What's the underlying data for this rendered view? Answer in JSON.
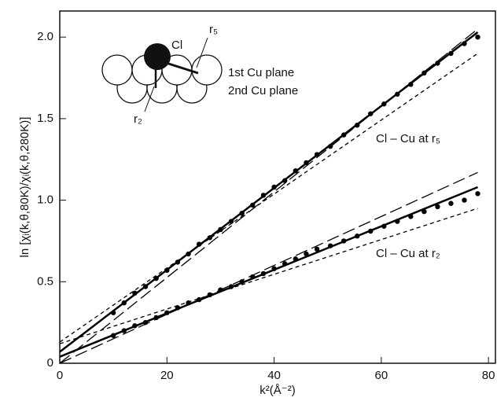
{
  "chart_data": {
    "type": "scatter",
    "xlabel": "k²(Å⁻²)",
    "ylabel": "ln [χᵢ(k,θ,80K)/χᵢ(k,θ,280K)]",
    "xlim": [
      0,
      81.3
    ],
    "ylim": [
      0,
      2.16
    ],
    "xticks": [
      0,
      20,
      40,
      60,
      80
    ],
    "yticks": [
      0,
      0.5,
      {
        "value": 1,
        "label": "1.0"
      },
      1.5,
      {
        "value": 2,
        "label": "2.0"
      }
    ],
    "annotations": [
      "Cl – Cu at r₅",
      "Cl – Cu at r₂",
      "Cl",
      "r₅",
      "1st Cu plane",
      "2nd Cu plane",
      "r₂"
    ],
    "series": [
      {
        "style": "dots",
        "color": "#000000",
        "x": [
          10,
          12,
          14,
          16,
          18,
          20,
          22,
          24,
          26,
          28,
          30,
          32,
          34,
          36,
          38,
          40,
          42,
          44,
          46,
          48,
          50.5,
          53,
          55.5,
          58,
          60.5,
          63,
          65.5,
          68,
          70.5,
          73,
          75.5,
          78
        ],
        "values": [
          0.31,
          0.37,
          0.43,
          0.47,
          0.52,
          0.57,
          0.62,
          0.67,
          0.73,
          0.77,
          0.82,
          0.87,
          0.92,
          0.97,
          1.03,
          1.08,
          1.12,
          1.18,
          1.23,
          1.28,
          1.33,
          1.4,
          1.46,
          1.53,
          1.59,
          1.65,
          1.71,
          1.78,
          1.84,
          1.9,
          1.96,
          2.0
        ]
      },
      {
        "style": "dots",
        "color": "#000000",
        "x": [
          10,
          12,
          14,
          16,
          18,
          20,
          22,
          24,
          26,
          28,
          30,
          32,
          34,
          36,
          38,
          40,
          42,
          44,
          46,
          48,
          50.5,
          53,
          55.5,
          58,
          60.5,
          63,
          65.5,
          68,
          70.5,
          73,
          75.5,
          78
        ],
        "values": [
          0.17,
          0.2,
          0.23,
          0.25,
          0.28,
          0.31,
          0.34,
          0.37,
          0.39,
          0.42,
          0.45,
          0.47,
          0.5,
          0.53,
          0.55,
          0.58,
          0.61,
          0.64,
          0.67,
          0.7,
          0.72,
          0.75,
          0.78,
          0.81,
          0.84,
          0.87,
          0.9,
          0.93,
          0.96,
          0.98,
          1.0,
          1.04
        ]
      },
      {
        "style": "solid",
        "color": "#000000",
        "x": [
          0,
          78
        ],
        "values": [
          0.07,
          2.03
        ]
      },
      {
        "style": "long-dash",
        "color": "#000000",
        "x": [
          0,
          78
        ],
        "values": [
          0,
          2.05
        ]
      },
      {
        "style": "short-dash",
        "color": "#000000",
        "x": [
          0,
          78
        ],
        "values": [
          0.13,
          1.9
        ]
      },
      {
        "style": "solid",
        "color": "#000000",
        "x": [
          0,
          78
        ],
        "values": [
          0.04,
          1.08
        ]
      },
      {
        "style": "long-dash",
        "color": "#000000",
        "x": [
          0,
          78
        ],
        "values": [
          0,
          1.17
        ]
      },
      {
        "style": "short-dash",
        "color": "#000000",
        "x": [
          0,
          78
        ],
        "values": [
          0.12,
          0.95
        ]
      }
    ]
  }
}
